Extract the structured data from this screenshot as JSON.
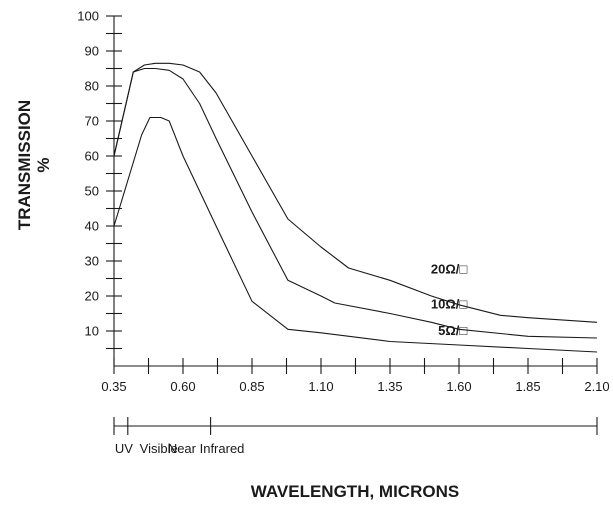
{
  "chart_data": {
    "type": "line",
    "title": "",
    "xlabel": "WAVELENGTH, MICRONS",
    "ylabel": "TRANSMISSION",
    "ylabel_unit": "%",
    "xlim": [
      0.35,
      2.1
    ],
    "ylim": [
      0,
      100
    ],
    "x_ticks": [
      "0.35",
      "0.60",
      "0.85",
      "1.10",
      "1.35",
      "1.60",
      "1.85",
      "2.10"
    ],
    "y_ticks": [
      "100",
      "90",
      "80",
      "70",
      "60",
      "50",
      "40",
      "30",
      "20",
      "10"
    ],
    "grid": false,
    "legend": "inline",
    "series": [
      {
        "name": "20Ω/□",
        "x": [
          0.35,
          0.42,
          0.46,
          0.5,
          0.55,
          0.6,
          0.66,
          0.72,
          0.85,
          0.98,
          1.1,
          1.2,
          1.35,
          1.5,
          1.6,
          1.75,
          1.85,
          2.1
        ],
        "y": [
          60,
          84,
          86,
          86.5,
          86.5,
          86,
          84,
          78,
          60,
          42,
          34,
          28,
          24.5,
          20,
          17.5,
          14.5,
          13.8,
          12.5
        ]
      },
      {
        "name": "10Ω/□",
        "x": [
          0.35,
          0.42,
          0.46,
          0.5,
          0.55,
          0.6,
          0.66,
          0.72,
          0.85,
          0.98,
          1.1,
          1.15,
          1.35,
          1.5,
          1.6,
          1.85,
          2.1
        ],
        "y": [
          60,
          84,
          85,
          85,
          84.5,
          82,
          75,
          65,
          44,
          24.5,
          20,
          18,
          15,
          12.5,
          10.5,
          8.5,
          8
        ]
      },
      {
        "name": "5Ω/□",
        "x": [
          0.35,
          0.4,
          0.45,
          0.48,
          0.52,
          0.55,
          0.6,
          0.72,
          0.85,
          0.98,
          1.1,
          1.35,
          1.6,
          1.85,
          2.1
        ],
        "y": [
          40,
          53,
          66,
          71,
          71,
          70,
          60,
          40,
          18.5,
          10.5,
          9.5,
          7,
          6,
          5,
          4
        ]
      }
    ],
    "series_labels": [
      "20Ω/□",
      "10Ω/□",
      "5Ω/□"
    ],
    "bands": [
      {
        "label": "UV",
        "from": 0.35,
        "to": 0.4
      },
      {
        "label": "Visible",
        "from": 0.4,
        "to": 0.7
      },
      {
        "label": "Near Infrared",
        "from": 0.7,
        "to": 2.1
      }
    ]
  }
}
